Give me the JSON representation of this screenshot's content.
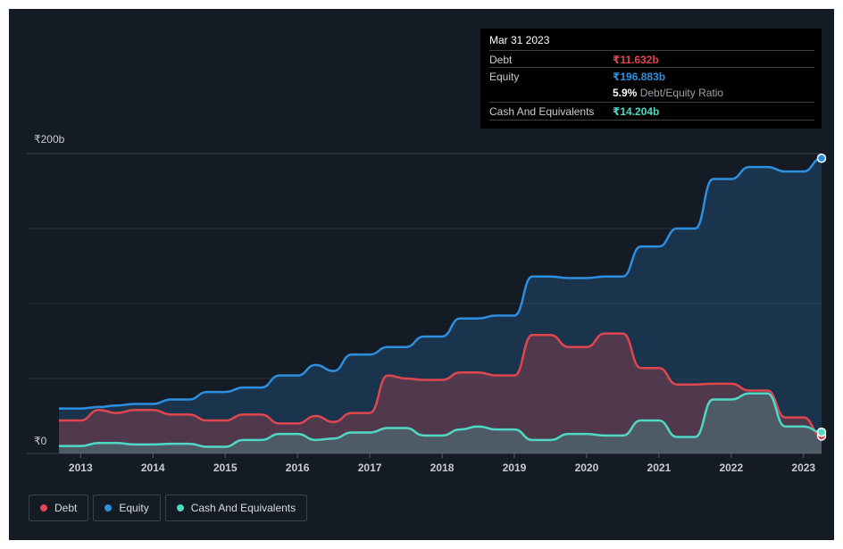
{
  "chart_data": {
    "type": "area",
    "y_max_label": "₹200b",
    "y_min_label": "₹0",
    "ylim": [
      0,
      200
    ],
    "xlim": [
      2012.7,
      2023.25
    ],
    "x_ticks": [
      "2013",
      "2014",
      "2015",
      "2016",
      "2017",
      "2018",
      "2019",
      "2020",
      "2021",
      "2022",
      "2023"
    ],
    "series": [
      {
        "name": "Equity",
        "color": "#2d8fe0",
        "x": [
          2012.7,
          2013.0,
          2013.25,
          2013.5,
          2013.75,
          2014.0,
          2014.25,
          2014.5,
          2014.75,
          2015.0,
          2015.25,
          2015.5,
          2015.75,
          2016.0,
          2016.25,
          2016.5,
          2016.75,
          2017.0,
          2017.25,
          2017.5,
          2017.75,
          2018.0,
          2018.25,
          2018.5,
          2018.75,
          2019.0,
          2019.25,
          2019.5,
          2019.75,
          2020.0,
          2020.25,
          2020.5,
          2020.75,
          2021.0,
          2021.25,
          2021.5,
          2021.75,
          2022.0,
          2022.25,
          2022.5,
          2022.75,
          2023.0,
          2023.25
        ],
        "values": [
          30,
          30,
          31,
          32,
          33,
          33,
          36,
          36,
          41,
          41,
          44,
          44,
          52,
          52,
          59,
          55,
          66,
          66,
          71,
          71,
          78,
          78,
          90,
          90,
          92,
          92,
          118,
          118,
          117,
          117,
          118,
          118,
          138,
          138,
          150,
          150,
          183,
          183,
          191,
          191,
          188,
          188,
          196.883
        ]
      },
      {
        "name": "Debt",
        "color": "#e0464e",
        "x": [
          2012.7,
          2013.0,
          2013.25,
          2013.5,
          2013.75,
          2014.0,
          2014.25,
          2014.5,
          2014.75,
          2015.0,
          2015.25,
          2015.5,
          2015.75,
          2016.0,
          2016.25,
          2016.5,
          2016.75,
          2017.0,
          2017.25,
          2017.5,
          2017.75,
          2018.0,
          2018.25,
          2018.5,
          2018.75,
          2019.0,
          2019.25,
          2019.5,
          2019.75,
          2020.0,
          2020.25,
          2020.5,
          2020.75,
          2021.0,
          2021.25,
          2021.5,
          2021.75,
          2022.0,
          2022.25,
          2022.5,
          2022.75,
          2023.0,
          2023.25
        ],
        "values": [
          22,
          22,
          29,
          27,
          29,
          29,
          26,
          26,
          22,
          22,
          26,
          26,
          20,
          20,
          25,
          21,
          27,
          27,
          52,
          50,
          49,
          49,
          54,
          54,
          52,
          52,
          79,
          79,
          71,
          71,
          80,
          80,
          57,
          57,
          46,
          46,
          46.5,
          46.5,
          42,
          42,
          24,
          24,
          11.632
        ]
      },
      {
        "name": "Cash And Equivalents",
        "color": "#4fd8c4",
        "x": [
          2012.7,
          2013.0,
          2013.25,
          2013.5,
          2013.75,
          2014.0,
          2014.25,
          2014.5,
          2014.75,
          2015.0,
          2015.25,
          2015.5,
          2015.75,
          2016.0,
          2016.25,
          2016.5,
          2016.75,
          2017.0,
          2017.25,
          2017.5,
          2017.75,
          2018.0,
          2018.25,
          2018.5,
          2018.75,
          2019.0,
          2019.25,
          2019.5,
          2019.75,
          2020.0,
          2020.25,
          2020.5,
          2020.75,
          2021.0,
          2021.25,
          2021.5,
          2021.75,
          2022.0,
          2022.25,
          2022.5,
          2022.75,
          2023.0,
          2023.25
        ],
        "values": [
          5,
          5,
          7,
          7,
          6,
          6,
          6.5,
          6.5,
          4.5,
          4.5,
          9,
          9,
          13,
          13,
          9,
          10,
          14,
          14,
          17,
          17,
          12,
          12,
          16,
          18,
          16,
          16,
          9,
          9,
          13,
          13,
          12,
          12,
          22,
          22,
          11,
          11,
          36,
          36,
          40,
          40,
          18,
          18,
          14.204
        ]
      }
    ],
    "tooltip": {
      "date": "Mar 31 2023",
      "debt_label": "Debt",
      "debt_value": "₹11.632b",
      "equity_label": "Equity",
      "equity_value": "₹196.883b",
      "ratio_value": "5.9%",
      "ratio_label": "Debt/Equity Ratio",
      "cash_label": "Cash And Equivalents",
      "cash_value": "₹14.204b"
    },
    "legend": [
      {
        "name": "Debt",
        "color": "#e0464e"
      },
      {
        "name": "Equity",
        "color": "#2d8fe0"
      },
      {
        "name": "Cash And Equivalents",
        "color": "#4fd8c4"
      }
    ]
  }
}
